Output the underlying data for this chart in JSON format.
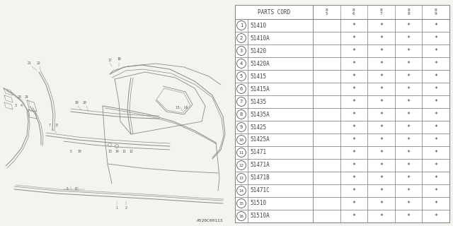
{
  "diagram_code": "A520C00113",
  "bg_color": "#f5f3ef",
  "table_bg": "#ffffff",
  "col_header": "PARTS CORD",
  "year_cols": [
    "85",
    "86",
    "87",
    "88",
    "89"
  ],
  "rows": [
    {
      "num": 1,
      "part": "51410",
      "marks": [
        false,
        true,
        true,
        true,
        true
      ]
    },
    {
      "num": 2,
      "part": "51410A",
      "marks": [
        false,
        true,
        true,
        true,
        true
      ]
    },
    {
      "num": 3,
      "part": "51420",
      "marks": [
        false,
        true,
        true,
        true,
        true
      ]
    },
    {
      "num": 4,
      "part": "51420A",
      "marks": [
        false,
        true,
        true,
        true,
        true
      ]
    },
    {
      "num": 5,
      "part": "51415",
      "marks": [
        false,
        true,
        true,
        true,
        true
      ]
    },
    {
      "num": 6,
      "part": "51415A",
      "marks": [
        false,
        true,
        true,
        true,
        true
      ]
    },
    {
      "num": 7,
      "part": "51435",
      "marks": [
        false,
        true,
        true,
        true,
        true
      ]
    },
    {
      "num": 8,
      "part": "51435A",
      "marks": [
        false,
        true,
        true,
        true,
        true
      ]
    },
    {
      "num": 9,
      "part": "51425",
      "marks": [
        false,
        true,
        true,
        true,
        true
      ]
    },
    {
      "num": 10,
      "part": "51425A",
      "marks": [
        false,
        true,
        true,
        true,
        true
      ]
    },
    {
      "num": 11,
      "part": "51471",
      "marks": [
        false,
        true,
        true,
        true,
        true
      ]
    },
    {
      "num": 12,
      "part": "51471A",
      "marks": [
        false,
        true,
        true,
        true,
        true
      ]
    },
    {
      "num": 13,
      "part": "51471B",
      "marks": [
        false,
        true,
        true,
        true,
        true
      ]
    },
    {
      "num": 14,
      "part": "51471C",
      "marks": [
        false,
        true,
        true,
        true,
        true
      ]
    },
    {
      "num": 15,
      "part": "51510",
      "marks": [
        false,
        true,
        true,
        true,
        true
      ]
    },
    {
      "num": 16,
      "part": "51510A",
      "marks": [
        false,
        true,
        true,
        true,
        true
      ]
    }
  ],
  "draw_color": "#888888",
  "text_color": "#444444",
  "line_color": "#888888"
}
